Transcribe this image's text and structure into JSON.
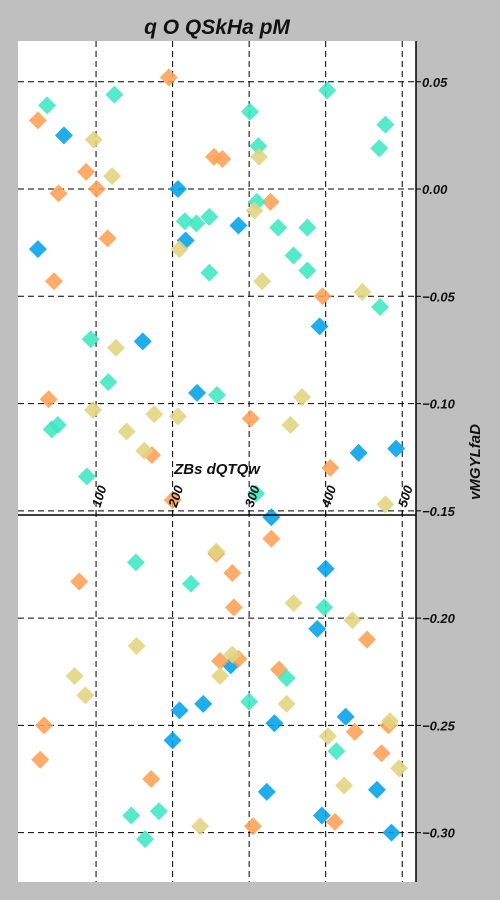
{
  "chart_data": {
    "type": "scatter",
    "title": "q O QSkHa pM",
    "xlabel": "ZBs dQTQw",
    "ylabel": "vMGYLfaD",
    "xlim": [
      -2,
      518
    ],
    "ylim": [
      -0.323,
      0.069
    ],
    "x_ticks": [
      100,
      200,
      300,
      400,
      500
    ],
    "y_ticks": [
      0.05,
      0.0,
      -0.05,
      -0.1,
      -0.15,
      -0.2,
      -0.25,
      -0.3
    ],
    "y_tick_labels": [
      "0.05",
      "0.00",
      "−0.05",
      "−0.10",
      "−0.15",
      "−0.20",
      "−0.25",
      "−0.30"
    ],
    "grid": true,
    "marker": "diamond",
    "series": [
      {
        "color": "#00a2e8",
        "points": [
          [
            24,
            -0.028
          ],
          [
            58,
            0.025
          ],
          [
            161,
            -0.071
          ],
          [
            207,
            0.0
          ],
          [
            217,
            -0.024
          ],
          [
            232,
            -0.095
          ],
          [
            286,
            -0.017
          ],
          [
            392,
            -0.064
          ],
          [
            443,
            -0.123
          ],
          [
            492,
            -0.121
          ],
          [
            329,
            -0.153
          ],
          [
            400,
            -0.177
          ],
          [
            389,
            -0.205
          ],
          [
            276,
            -0.222
          ],
          [
            209,
            -0.243
          ],
          [
            240,
            -0.24
          ],
          [
            333,
            -0.249
          ],
          [
            426,
            -0.246
          ],
          [
            200,
            -0.257
          ],
          [
            323,
            -0.281
          ],
          [
            395,
            -0.292
          ],
          [
            467,
            -0.28
          ],
          [
            486,
            -0.3
          ]
        ]
      },
      {
        "color": "#ff9f55",
        "points": [
          [
            24,
            0.032
          ],
          [
            51,
            -0.002
          ],
          [
            45,
            -0.043
          ],
          [
            87,
            0.008
          ],
          [
            101,
            0.0
          ],
          [
            115,
            -0.023
          ],
          [
            38,
            -0.098
          ],
          [
            195,
            0.052
          ],
          [
            254,
            0.015
          ],
          [
            265,
            0.014
          ],
          [
            328,
            -0.006
          ],
          [
            396,
            -0.05
          ],
          [
            302,
            -0.107
          ],
          [
            173,
            -0.124
          ],
          [
            200,
            -0.145
          ],
          [
            406,
            -0.13
          ],
          [
            78,
            -0.183
          ],
          [
            257,
            -0.17
          ],
          [
            278,
            -0.179
          ],
          [
            280,
            -0.195
          ],
          [
            329,
            -0.163
          ],
          [
            262,
            -0.22
          ],
          [
            286,
            -0.219
          ],
          [
            339,
            -0.224
          ],
          [
            454,
            -0.21
          ],
          [
            438,
            -0.253
          ],
          [
            482,
            -0.25
          ],
          [
            473,
            -0.263
          ],
          [
            32,
            -0.25
          ],
          [
            27,
            -0.266
          ],
          [
            172,
            -0.275
          ],
          [
            305,
            -0.297
          ],
          [
            412,
            -0.295
          ]
        ]
      },
      {
        "color": "#3ee8c0",
        "points": [
          [
            36,
            0.039
          ],
          [
            124,
            0.044
          ],
          [
            301,
            0.036
          ],
          [
            312,
            0.02
          ],
          [
            402,
            0.046
          ],
          [
            478,
            0.03
          ],
          [
            470,
            0.019
          ],
          [
            310,
            -0.006
          ],
          [
            216,
            -0.015
          ],
          [
            231,
            -0.016
          ],
          [
            248,
            -0.013
          ],
          [
            338,
            -0.018
          ],
          [
            376,
            -0.018
          ],
          [
            358,
            -0.031
          ],
          [
            248,
            -0.039
          ],
          [
            376,
            -0.038
          ],
          [
            471,
            -0.055
          ],
          [
            93,
            -0.07
          ],
          [
            116,
            -0.09
          ],
          [
            258,
            -0.096
          ],
          [
            42,
            -0.112
          ],
          [
            50,
            -0.11
          ],
          [
            88,
            -0.134
          ],
          [
            309,
            -0.142
          ],
          [
            152,
            -0.174
          ],
          [
            224,
            -0.184
          ],
          [
            398,
            -0.195
          ],
          [
            349,
            -0.228
          ],
          [
            300,
            -0.239
          ],
          [
            414,
            -0.262
          ],
          [
            146,
            -0.292
          ],
          [
            182,
            -0.29
          ],
          [
            164,
            -0.303
          ]
        ]
      },
      {
        "color": "#e0d47e",
        "points": [
          [
            97,
            0.023
          ],
          [
            121,
            0.006
          ],
          [
            313,
            0.015
          ],
          [
            209,
            -0.028
          ],
          [
            307,
            -0.01
          ],
          [
            317,
            -0.043
          ],
          [
            448,
            -0.048
          ],
          [
            126,
            -0.074
          ],
          [
            96,
            -0.103
          ],
          [
            176,
            -0.105
          ],
          [
            207,
            -0.106
          ],
          [
            140,
            -0.113
          ],
          [
            163,
            -0.122
          ],
          [
            354,
            -0.11
          ],
          [
            369,
            -0.097
          ],
          [
            478,
            -0.147
          ],
          [
            257,
            -0.169
          ],
          [
            358,
            -0.193
          ],
          [
            153,
            -0.213
          ],
          [
            72,
            -0.227
          ],
          [
            86,
            -0.236
          ],
          [
            262,
            -0.227
          ],
          [
            278,
            -0.217
          ],
          [
            349,
            -0.24
          ],
          [
            435,
            -0.201
          ],
          [
            403,
            -0.255
          ],
          [
            424,
            -0.278
          ],
          [
            484,
            -0.248
          ],
          [
            496,
            -0.27
          ],
          [
            236,
            -0.297
          ]
        ]
      }
    ]
  }
}
